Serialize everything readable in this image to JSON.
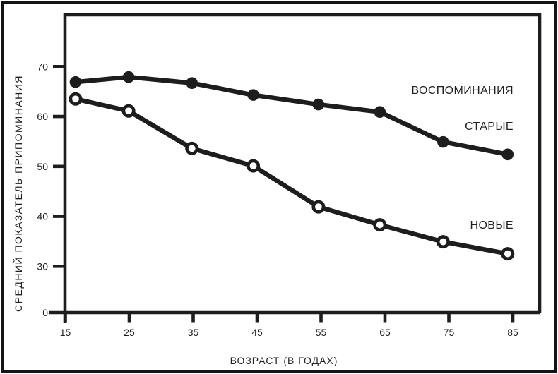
{
  "figure": {
    "background": "#ffffff",
    "border_color": "#161412",
    "ink_color": "#1d1d1b",
    "text_color": "#231f20"
  },
  "chart_data": {
    "type": "line",
    "xlabel": "ВОЗРАСТ (В ГОДАХ)",
    "ylabel": "СРЕДНИЙ ПОКАЗАТЕЛЬ ПРИПОМИНАНИЯ",
    "x": [
      16.6,
      24.9,
      34.8,
      44.4,
      54.6,
      64.2,
      74.1,
      84.2
    ],
    "series": [
      {
        "name": "ВОСПОМИНАНИЯ СТАРЫЕ",
        "marker": "filled-circle",
        "values": [
          66.9,
          67.9,
          66.7,
          64.3,
          62.4,
          60.9,
          54.9,
          52.4
        ]
      },
      {
        "name": "НОВЫЕ",
        "marker": "open-circle",
        "values": [
          63.5,
          61.1,
          53.6,
          50.1,
          41.9,
          38.3,
          34.9,
          32.5
        ]
      }
    ],
    "x_ticks": [
      15,
      25,
      35,
      45,
      55,
      65,
      75,
      85
    ],
    "y_ticks": [
      0,
      30,
      40,
      50,
      60,
      70
    ],
    "y_axis_break_between": [
      0,
      30
    ],
    "xlim": [
      15,
      89
    ],
    "ylim_linear": [
      30,
      79
    ],
    "grid": false,
    "legend_position": "inline-annotations-right"
  },
  "annotations": {
    "memories": "ВОСПОМИНАНИЯ",
    "old": "СТАРЫЕ",
    "new": "НОВЫЕ"
  }
}
